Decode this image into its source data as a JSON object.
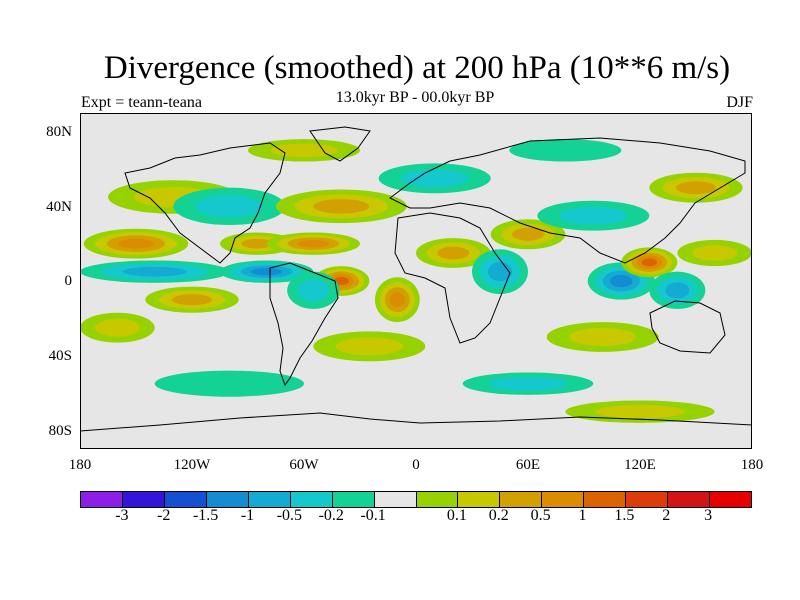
{
  "title": "Divergence (smoothed) at 200 hPa (10**6 m/s)",
  "subtitle": "13.0kyr BP - 00.0kyr BP",
  "left_label": "Expt = teann-teana",
  "right_label": "DJF",
  "map": {
    "projection": "cylindrical-equidistant",
    "lon_range": [
      -180,
      180
    ],
    "lat_range": [
      -90,
      90
    ],
    "background_color": "#e6e6e6"
  },
  "chart_data": {
    "type": "heatmap",
    "title": "Divergence (smoothed) at 200 hPa (10**6 m/s)",
    "ylim": [
      -90,
      90
    ],
    "xlim": [
      -180,
      180
    ],
    "y_ticks": [
      {
        "label": "80N",
        "value": 80
      },
      {
        "label": "40N",
        "value": 40
      },
      {
        "label": "0",
        "value": 0
      },
      {
        "label": "40S",
        "value": -40
      },
      {
        "label": "80S",
        "value": -80
      }
    ],
    "x_ticks": [
      {
        "label": "180",
        "value": -180
      },
      {
        "label": "120W",
        "value": -120
      },
      {
        "label": "60W",
        "value": -60
      },
      {
        "label": "0",
        "value": 0
      },
      {
        "label": "60E",
        "value": 60
      },
      {
        "label": "120E",
        "value": 120
      },
      {
        "label": "180",
        "value": 180
      }
    ],
    "colorbar": {
      "colors": [
        "#8c1ee6",
        "#3214dc",
        "#1450d2",
        "#148cd2",
        "#14aad2",
        "#14c8cd",
        "#14d296",
        "#e6e6e6",
        "#96d200",
        "#c8c800",
        "#d2a000",
        "#dc8c00",
        "#dc6400",
        "#dc3c0a",
        "#d21414",
        "#e60000"
      ],
      "labels": [
        "-3",
        "-2",
        "-1.5",
        "-1",
        "-0.5",
        "-0.2",
        "-0.1",
        "0.1",
        "0.2",
        "0.5",
        "1",
        "1.5",
        "2",
        "3"
      ]
    },
    "blobs": [
      {
        "lon": -150,
        "lat": 20,
        "rx": 28,
        "ry": 8,
        "level": 4
      },
      {
        "lon": -140,
        "lat": 5,
        "rx": 40,
        "ry": 6,
        "level": -3
      },
      {
        "lon": -120,
        "lat": -10,
        "rx": 25,
        "ry": 7,
        "level": 3
      },
      {
        "lon": -160,
        "lat": -25,
        "rx": 20,
        "ry": 8,
        "level": 2
      },
      {
        "lon": -130,
        "lat": 45,
        "rx": 35,
        "ry": 9,
        "level": 2
      },
      {
        "lon": -100,
        "lat": 40,
        "rx": 30,
        "ry": 10,
        "level": -2
      },
      {
        "lon": -85,
        "lat": 20,
        "rx": 20,
        "ry": 6,
        "level": 3
      },
      {
        "lon": -80,
        "lat": 5,
        "rx": 25,
        "ry": 6,
        "level": -4
      },
      {
        "lon": -55,
        "lat": 20,
        "rx": 25,
        "ry": 6,
        "level": 4
      },
      {
        "lon": -40,
        "lat": 0,
        "rx": 15,
        "ry": 8,
        "level": 5
      },
      {
        "lon": -55,
        "lat": -5,
        "rx": 14,
        "ry": 10,
        "level": -2
      },
      {
        "lon": -10,
        "lat": -10,
        "rx": 12,
        "ry": 12,
        "level": 4
      },
      {
        "lon": -40,
        "lat": 40,
        "rx": 35,
        "ry": 9,
        "level": 3
      },
      {
        "lon": -25,
        "lat": -35,
        "rx": 30,
        "ry": 8,
        "level": 2
      },
      {
        "lon": 10,
        "lat": 55,
        "rx": 30,
        "ry": 8,
        "level": -2
      },
      {
        "lon": 20,
        "lat": 15,
        "rx": 20,
        "ry": 8,
        "level": 3
      },
      {
        "lon": 45,
        "lat": 5,
        "rx": 15,
        "ry": 12,
        "level": -3
      },
      {
        "lon": 60,
        "lat": 25,
        "rx": 20,
        "ry": 8,
        "level": 3
      },
      {
        "lon": 95,
        "lat": 35,
        "rx": 30,
        "ry": 8,
        "level": -2
      },
      {
        "lon": 110,
        "lat": 0,
        "rx": 18,
        "ry": 10,
        "level": -4
      },
      {
        "lon": 125,
        "lat": 10,
        "rx": 15,
        "ry": 8,
        "level": 5
      },
      {
        "lon": 140,
        "lat": -5,
        "rx": 15,
        "ry": 10,
        "level": -3
      },
      {
        "lon": 160,
        "lat": 15,
        "rx": 20,
        "ry": 7,
        "level": 2
      },
      {
        "lon": 150,
        "lat": 50,
        "rx": 25,
        "ry": 8,
        "level": 3
      },
      {
        "lon": 100,
        "lat": -30,
        "rx": 30,
        "ry": 8,
        "level": 2
      },
      {
        "lon": 60,
        "lat": -55,
        "rx": 35,
        "ry": 6,
        "level": -2
      },
      {
        "lon": -100,
        "lat": -55,
        "rx": 40,
        "ry": 7,
        "level": -1
      },
      {
        "lon": 120,
        "lat": -70,
        "rx": 40,
        "ry": 6,
        "level": 2
      },
      {
        "lon": -60,
        "lat": 70,
        "rx": 30,
        "ry": 6,
        "level": 2
      },
      {
        "lon": 80,
        "lat": 70,
        "rx": 30,
        "ry": 6,
        "level": -1
      }
    ]
  }
}
